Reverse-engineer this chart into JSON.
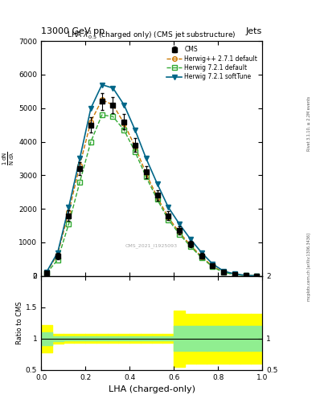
{
  "title_top": "13000 GeV pp",
  "title_right": "Jets",
  "plot_title": "LHA $\\lambda^1_{0.5}$ (charged only) (CMS jet substructure)",
  "xlabel": "LHA (charged-only)",
  "ylabel_ratio": "Ratio to CMS",
  "watermark": "CMS_2021_I1925093",
  "rivet_version": "Rivet 3.1.10, ≥ 2.2M events",
  "mcplots": "mcplots.cern.ch [arXiv:1306.3436]",
  "xlim": [
    0,
    1
  ],
  "ylim_main": [
    0,
    7000
  ],
  "ylim_ratio": [
    0.5,
    2.0
  ],
  "x_data": [
    0.025,
    0.075,
    0.125,
    0.175,
    0.225,
    0.275,
    0.325,
    0.375,
    0.425,
    0.475,
    0.525,
    0.575,
    0.625,
    0.675,
    0.725,
    0.775,
    0.825,
    0.875,
    0.925,
    0.975
  ],
  "cms_y": [
    100,
    600,
    1800,
    3200,
    4500,
    5200,
    5100,
    4600,
    3900,
    3100,
    2400,
    1800,
    1350,
    950,
    600,
    300,
    120,
    50,
    15,
    5
  ],
  "cms_yerr": [
    30,
    100,
    150,
    200,
    220,
    250,
    240,
    220,
    200,
    180,
    160,
    140,
    120,
    100,
    80,
    50,
    30,
    15,
    8,
    3
  ],
  "herwig_pp_y": [
    110,
    650,
    1900,
    3300,
    4600,
    5250,
    5100,
    4550,
    3850,
    3050,
    2350,
    1750,
    1300,
    920,
    580,
    290,
    115,
    48,
    14,
    4
  ],
  "herwig_721_default_y": [
    85,
    480,
    1550,
    2800,
    4000,
    4800,
    4750,
    4350,
    3700,
    2950,
    2280,
    1680,
    1250,
    880,
    550,
    270,
    105,
    43,
    12,
    3
  ],
  "herwig_721_softtune_y": [
    120,
    700,
    2050,
    3500,
    5000,
    5700,
    5600,
    5100,
    4350,
    3500,
    2750,
    2050,
    1550,
    1100,
    700,
    360,
    145,
    60,
    18,
    5
  ],
  "color_cms": "#000000",
  "color_herwig_pp": "#cc7700",
  "color_herwig_721_default": "#33aa33",
  "color_herwig_721_softtune": "#006688",
  "ratio_band_yellow_lo": [
    0.78,
    0.92,
    0.93,
    0.93,
    0.93,
    0.93,
    0.93,
    0.93,
    0.93,
    0.93,
    0.93,
    0.93,
    0.55,
    0.6,
    0.6,
    0.6,
    0.6,
    0.6,
    0.6,
    0.6
  ],
  "ratio_band_yellow_hi": [
    1.22,
    1.08,
    1.07,
    1.07,
    1.07,
    1.07,
    1.07,
    1.07,
    1.07,
    1.07,
    1.07,
    1.07,
    1.45,
    1.4,
    1.4,
    1.4,
    1.4,
    1.4,
    1.4,
    1.4
  ],
  "ratio_band_green_lo": [
    0.9,
    0.96,
    0.97,
    0.97,
    0.97,
    0.97,
    0.97,
    0.97,
    0.97,
    0.97,
    0.97,
    0.97,
    0.8,
    0.8,
    0.8,
    0.8,
    0.8,
    0.8,
    0.8,
    0.8
  ],
  "ratio_band_green_hi": [
    1.1,
    1.04,
    1.03,
    1.03,
    1.03,
    1.03,
    1.03,
    1.03,
    1.03,
    1.03,
    1.03,
    1.03,
    1.2,
    1.2,
    1.2,
    1.2,
    1.2,
    1.2,
    1.2,
    1.2
  ],
  "yticks_main": [
    0,
    1000,
    2000,
    3000,
    4000,
    5000,
    6000,
    7000
  ],
  "ytick_labels_main": [
    "",
    "1000",
    "2000",
    "3000",
    "4000",
    "5000",
    "6000",
    "7000"
  ],
  "yticks_ratio": [
    0.5,
    1.0,
    1.5,
    2.0
  ],
  "ytick_labels_ratio": [
    "0.5",
    "1",
    "1.5",
    "2"
  ]
}
